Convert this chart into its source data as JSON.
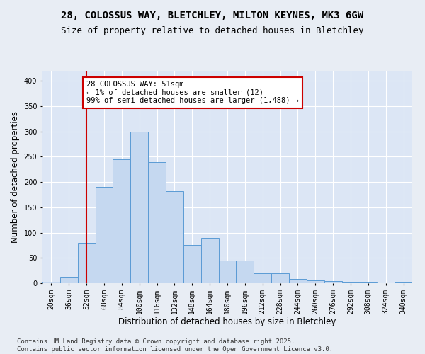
{
  "title_line1": "28, COLOSSUS WAY, BLETCHLEY, MILTON KEYNES, MK3 6GW",
  "title_line2": "Size of property relative to detached houses in Bletchley",
  "xlabel": "Distribution of detached houses by size in Bletchley",
  "ylabel": "Number of detached properties",
  "categories": [
    "20sqm",
    "36sqm",
    "52sqm",
    "68sqm",
    "84sqm",
    "100sqm",
    "116sqm",
    "132sqm",
    "148sqm",
    "164sqm",
    "180sqm",
    "196sqm",
    "212sqm",
    "228sqm",
    "244sqm",
    "260sqm",
    "276sqm",
    "292sqm",
    "308sqm",
    "324sqm",
    "340sqm"
  ],
  "bar_values": [
    3,
    12,
    80,
    190,
    245,
    300,
    240,
    182,
    75,
    90,
    45,
    45,
    20,
    20,
    9,
    5,
    4,
    2,
    1,
    0,
    1
  ],
  "bar_color": "#c5d8f0",
  "bar_edge_color": "#5b9bd5",
  "bar_width": 1.0,
  "vline_x": 2,
  "vline_color": "#cc0000",
  "vline_linewidth": 1.5,
  "annotation_text": "28 COLOSSUS WAY: 51sqm\n← 1% of detached houses are smaller (12)\n99% of semi-detached houses are larger (1,488) →",
  "annotation_box_color": "#ffffff",
  "annotation_box_edge_color": "#cc0000",
  "ylim": [
    0,
    420
  ],
  "yticks": [
    0,
    50,
    100,
    150,
    200,
    250,
    300,
    350,
    400
  ],
  "background_color": "#e8edf4",
  "plot_bg_color": "#dce6f5",
  "grid_color": "#ffffff",
  "footer_line1": "Contains HM Land Registry data © Crown copyright and database right 2025.",
  "footer_line2": "Contains public sector information licensed under the Open Government Licence v3.0.",
  "title_fontsize": 10,
  "subtitle_fontsize": 9,
  "tick_fontsize": 7,
  "label_fontsize": 8.5,
  "footer_fontsize": 6.5,
  "annotation_fontsize": 7.5
}
